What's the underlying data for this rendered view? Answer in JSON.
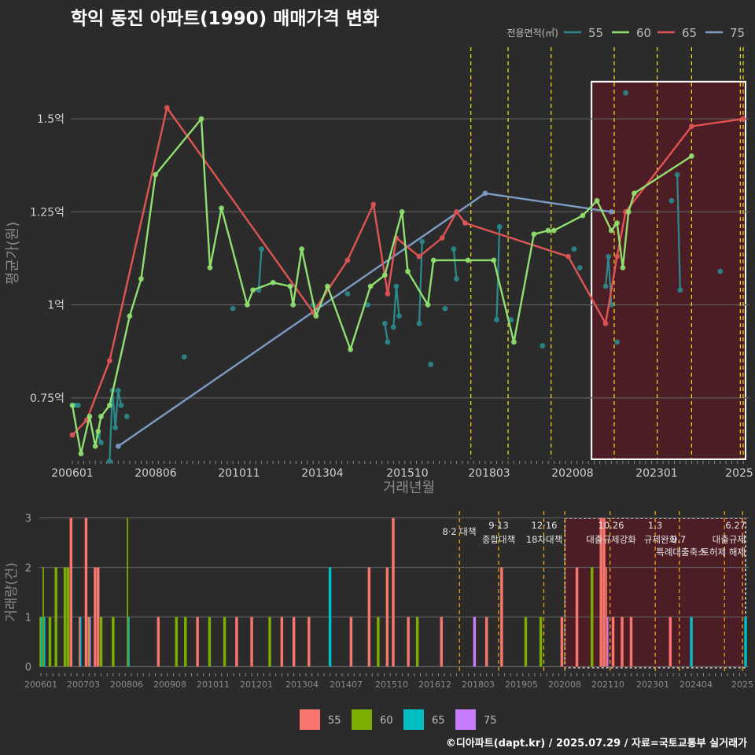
{
  "title": "학익 동진 아파트(1990) 매매가격 변화",
  "footer": "©디아파트(dapt.kr) / 2025.07.29 / 자료=국토교통부 실거래가",
  "colors": {
    "background": "#2b2b2b",
    "grid": "#5a5a5a",
    "policy_line": "#f5e214",
    "highlight_fill": "#5a1a24",
    "s55": "#2a8a8c",
    "s60": "#90e070",
    "s65": "#e05454",
    "s75": "#7d9cc4",
    "b55": "#f8766d",
    "b60": "#7cae00",
    "b65": "#00bfc4",
    "b75": "#c77cff"
  },
  "chart_data": [
    {
      "type": "line",
      "title": "학익 동진 아파트(1990) 매매가격 변화",
      "xlabel": "거래년월",
      "ylabel": "평균가(원)",
      "x_tick_labels": [
        "200601",
        "200806",
        "201011",
        "201304",
        "201510",
        "201803",
        "202008",
        "202301",
        "2025"
      ],
      "y_tick_labels": [
        "0.75억",
        "1억",
        "1.25억",
        "1.5억"
      ],
      "y_ticks": [
        0.75,
        1.0,
        1.25,
        1.5
      ],
      "ylim": [
        0.55,
        1.6
      ],
      "legend_title": "전용면적(㎡)",
      "legend_position": "top-right",
      "highlight_range": [
        "2021-01",
        "2025-07"
      ],
      "policy_dates": [
        "2017-08",
        "2018-09",
        "2019-12",
        "2021-10",
        "2023-01",
        "2024-01",
        "2025-06",
        "2025-07"
      ],
      "series": [
        {
          "name": "55",
          "color_key": "s55",
          "points": [
            [
              "2006-02",
              0.73
            ],
            [
              "2006-03",
              0.73
            ],
            [
              "2006-10",
              0.65
            ],
            [
              "2006-11",
              0.63
            ],
            [
              "2007-02",
              0.58
            ],
            [
              "2007-03",
              0.77
            ],
            [
              "2007-04",
              0.67
            ],
            [
              "2007-05",
              0.77
            ],
            [
              "2007-06",
              0.73
            ],
            [
              "2007-08",
              0.7
            ],
            [
              "2009-04",
              0.86
            ],
            [
              "2010-09",
              0.99
            ],
            [
              "2011-06",
              1.04
            ],
            [
              "2011-07",
              1.15
            ],
            [
              "2012-05",
              1.05
            ],
            [
              "2013-01",
              1.0
            ],
            [
              "2014-01",
              1.03
            ],
            [
              "2014-08",
              1.0
            ],
            [
              "2015-02",
              0.95
            ],
            [
              "2015-03",
              0.9
            ],
            [
              "2015-05",
              0.94
            ],
            [
              "2015-06",
              1.05
            ],
            [
              "2015-07",
              0.97
            ],
            [
              "2016-02",
              0.95
            ],
            [
              "2016-03",
              1.17
            ],
            [
              "2016-06",
              0.84
            ],
            [
              "2016-11",
              0.99
            ],
            [
              "2017-02",
              1.15
            ],
            [
              "2017-03",
              1.07
            ],
            [
              "2018-05",
              0.96
            ],
            [
              "2018-06",
              1.21
            ],
            [
              "2018-10",
              0.96
            ],
            [
              "2019-09",
              0.89
            ],
            [
              "2020-08",
              1.15
            ],
            [
              "2020-10",
              1.1
            ],
            [
              "2021-07",
              1.05
            ],
            [
              "2021-08",
              1.13
            ],
            [
              "2021-09",
              1.0
            ],
            [
              "2021-11",
              0.9
            ],
            [
              "2022-02",
              1.57
            ],
            [
              "2023-06",
              1.28
            ],
            [
              "2023-08",
              1.35
            ],
            [
              "2023-09",
              1.04
            ],
            [
              "2024-11",
              1.09
            ]
          ]
        },
        {
          "name": "60",
          "color_key": "s60",
          "points": [
            [
              "2006-01",
              0.73
            ],
            [
              "2006-04",
              0.6
            ],
            [
              "2006-07",
              0.7
            ],
            [
              "2006-09",
              0.62
            ],
            [
              "2006-10",
              0.66
            ],
            [
              "2006-11",
              0.7
            ],
            [
              "2007-02",
              0.73
            ],
            [
              "2007-09",
              0.97
            ],
            [
              "2008-01",
              1.07
            ],
            [
              "2008-06",
              1.35
            ],
            [
              "2009-10",
              1.5
            ],
            [
              "2010-01",
              1.1
            ],
            [
              "2010-05",
              1.26
            ],
            [
              "2011-02",
              1.0
            ],
            [
              "2011-04",
              1.04
            ],
            [
              "2011-11",
              1.06
            ],
            [
              "2012-05",
              1.05
            ],
            [
              "2012-06",
              1.0
            ],
            [
              "2012-09",
              1.15
            ],
            [
              "2013-02",
              0.97
            ],
            [
              "2013-06",
              1.05
            ],
            [
              "2014-02",
              0.88
            ],
            [
              "2014-09",
              1.05
            ],
            [
              "2015-02",
              1.08
            ],
            [
              "2015-08",
              1.25
            ],
            [
              "2015-10",
              1.09
            ],
            [
              "2016-05",
              1.0
            ],
            [
              "2016-07",
              1.12
            ],
            [
              "2017-07",
              1.12
            ],
            [
              "2018-04",
              1.12
            ],
            [
              "2018-11",
              0.9
            ],
            [
              "2019-06",
              1.19
            ],
            [
              "2019-11",
              1.2
            ],
            [
              "2020-01",
              1.2
            ],
            [
              "2020-11",
              1.24
            ],
            [
              "2021-04",
              1.28
            ],
            [
              "2021-09",
              1.2
            ],
            [
              "2021-11",
              1.22
            ],
            [
              "2022-01",
              1.1
            ],
            [
              "2022-03",
              1.25
            ],
            [
              "2022-05",
              1.3
            ],
            [
              "2024-01",
              1.4
            ]
          ]
        },
        {
          "name": "65",
          "color_key": "s65",
          "points": [
            [
              "2006-01",
              0.65
            ],
            [
              "2006-06",
              0.69
            ],
            [
              "2007-02",
              0.85
            ],
            [
              "2008-10",
              1.53
            ],
            [
              "2013-01",
              0.98
            ],
            [
              "2014-01",
              1.12
            ],
            [
              "2014-10",
              1.27
            ],
            [
              "2015-03",
              1.03
            ],
            [
              "2015-06",
              1.18
            ],
            [
              "2016-02",
              1.13
            ],
            [
              "2016-10",
              1.18
            ],
            [
              "2017-03",
              1.25
            ],
            [
              "2017-06",
              1.22
            ],
            [
              "2020-06",
              1.13
            ],
            [
              "2021-07",
              0.95
            ],
            [
              "2021-11",
              1.13
            ],
            [
              "2022-02",
              1.25
            ],
            [
              "2024-01",
              1.48
            ],
            [
              "2025-07",
              1.5
            ]
          ]
        },
        {
          "name": "75",
          "color_key": "s75",
          "points": [
            [
              "2007-05",
              0.62
            ],
            [
              "2018-01",
              1.3
            ],
            [
              "2021-09",
              1.25
            ]
          ]
        }
      ]
    },
    {
      "type": "bar",
      "xlabel": "",
      "ylabel": "거래량(건)",
      "y_tick_labels": [
        "0",
        "1",
        "2",
        "3"
      ],
      "ylim": [
        0,
        3
      ],
      "x_tick_labels": [
        "200601",
        "200703",
        "200806",
        "200908",
        "201011",
        "201201",
        "201304",
        "201407",
        "201510",
        "201612",
        "201803",
        "201905",
        "202008",
        "202110",
        "202301",
        "202404",
        "2025"
      ],
      "legend": [
        "55",
        "60",
        "65",
        "75"
      ],
      "legend_position": "bottom",
      "highlight_range": [
        "2020-07",
        "2025-07"
      ],
      "policy_annotations": [
        {
          "date": "2017-08",
          "label": "8·2 대책"
        },
        {
          "date": "2018-09",
          "label": "9·13 종합대책"
        },
        {
          "date": "2019-12",
          "label": "12·16 18차대책"
        },
        {
          "date": "2020-07",
          "label": ""
        },
        {
          "date": "2021-10",
          "label": "10.26 대출규제강화"
        },
        {
          "date": "2023-01",
          "label": "1.3 규제완화"
        },
        {
          "date": "2023-09",
          "label": "9.7 특례대출축소"
        },
        {
          "date": "2024-12",
          "label": "토허제 해제"
        },
        {
          "date": "2025-06",
          "label": "6.27 대출규제"
        }
      ],
      "policy_labels": [
        "8·2 대책",
        "9·13",
        "종합대책",
        "12·16",
        "18차대책",
        "10.26",
        "대출규제강화",
        "1.3",
        "규제완화",
        "9.7",
        "특례대출축소",
        "토허제 해제",
        "6.27",
        "대출규제"
      ],
      "bars": [
        {
          "month": "2006-01",
          "counts": [
            0,
            1,
            1,
            0
          ]
        },
        {
          "month": "2006-02",
          "counts": [
            0,
            2,
            1,
            0
          ]
        },
        {
          "month": "2006-04",
          "counts": [
            0,
            1,
            0,
            0
          ]
        },
        {
          "month": "2006-06",
          "counts": [
            0,
            2,
            0,
            0
          ]
        },
        {
          "month": "2006-09",
          "counts": [
            0,
            2,
            0,
            0
          ]
        },
        {
          "month": "2006-10",
          "counts": [
            0,
            2,
            0,
            0
          ]
        },
        {
          "month": "2006-11",
          "counts": [
            3,
            0,
            0,
            0
          ]
        },
        {
          "month": "2007-02",
          "counts": [
            1,
            0,
            1,
            0
          ]
        },
        {
          "month": "2007-04",
          "counts": [
            3,
            0,
            0,
            0
          ]
        },
        {
          "month": "2007-05",
          "counts": [
            1,
            1,
            0,
            1
          ]
        },
        {
          "month": "2007-07",
          "counts": [
            2,
            0,
            0,
            0
          ]
        },
        {
          "month": "2007-08",
          "counts": [
            2,
            0,
            0,
            0
          ]
        },
        {
          "month": "2007-09",
          "counts": [
            0,
            1,
            0,
            0
          ]
        },
        {
          "month": "2008-01",
          "counts": [
            0,
            1,
            0,
            0
          ]
        },
        {
          "month": "2008-06",
          "counts": [
            0,
            3,
            1,
            0
          ]
        },
        {
          "month": "2009-04",
          "counts": [
            1,
            0,
            0,
            0
          ]
        },
        {
          "month": "2009-10",
          "counts": [
            0,
            1,
            0,
            0
          ]
        },
        {
          "month": "2010-01",
          "counts": [
            0,
            1,
            0,
            0
          ]
        },
        {
          "month": "2010-05",
          "counts": [
            1,
            0,
            0,
            0
          ]
        },
        {
          "month": "2010-09",
          "counts": [
            0,
            1,
            0,
            0
          ]
        },
        {
          "month": "2011-02",
          "counts": [
            0,
            1,
            0,
            0
          ]
        },
        {
          "month": "2011-06",
          "counts": [
            1,
            0,
            0,
            0
          ]
        },
        {
          "month": "2011-11",
          "counts": [
            1,
            0,
            0,
            0
          ]
        },
        {
          "month": "2012-05",
          "counts": [
            0,
            1,
            0,
            0
          ]
        },
        {
          "month": "2012-09",
          "counts": [
            1,
            0,
            0,
            0
          ]
        },
        {
          "month": "2013-01",
          "counts": [
            1,
            0,
            0,
            0
          ]
        },
        {
          "month": "2013-06",
          "counts": [
            1,
            0,
            0,
            0
          ]
        },
        {
          "month": "2014-01",
          "counts": [
            0,
            0,
            2,
            0
          ]
        },
        {
          "month": "2014-08",
          "counts": [
            1,
            0,
            0,
            0
          ]
        },
        {
          "month": "2015-02",
          "counts": [
            2,
            0,
            0,
            0
          ]
        },
        {
          "month": "2015-05",
          "counts": [
            0,
            1,
            0,
            0
          ]
        },
        {
          "month": "2015-08",
          "counts": [
            2,
            0,
            0,
            0
          ]
        },
        {
          "month": "2015-10",
          "counts": [
            3,
            0,
            0,
            0
          ]
        },
        {
          "month": "2016-03",
          "counts": [
            1,
            0,
            0,
            0
          ]
        },
        {
          "month": "2016-06",
          "counts": [
            0,
            1,
            0,
            0
          ]
        },
        {
          "month": "2017-02",
          "counts": [
            1,
            0,
            0,
            0
          ]
        },
        {
          "month": "2018-01",
          "counts": [
            0,
            0,
            0,
            1
          ]
        },
        {
          "month": "2018-05",
          "counts": [
            1,
            0,
            0,
            0
          ]
        },
        {
          "month": "2018-10",
          "counts": [
            2,
            0,
            0,
            0
          ]
        },
        {
          "month": "2019-06",
          "counts": [
            0,
            1,
            0,
            0
          ]
        },
        {
          "month": "2019-11",
          "counts": [
            0,
            1,
            0,
            0
          ]
        },
        {
          "month": "2020-06",
          "counts": [
            1,
            0,
            0,
            0
          ]
        },
        {
          "month": "2020-11",
          "counts": [
            2,
            0,
            0,
            0
          ]
        },
        {
          "month": "2021-04",
          "counts": [
            0,
            2,
            0,
            0
          ]
        },
        {
          "month": "2021-07",
          "counts": [
            3,
            0,
            0,
            0
          ]
        },
        {
          "month": "2021-08",
          "counts": [
            3,
            0,
            0,
            0
          ]
        },
        {
          "month": "2021-09",
          "counts": [
            2,
            0,
            0,
            1
          ]
        },
        {
          "month": "2021-11",
          "counts": [
            1,
            0,
            0,
            0
          ]
        },
        {
          "month": "2022-02",
          "counts": [
            1,
            0,
            0,
            0
          ]
        },
        {
          "month": "2022-05",
          "counts": [
            1,
            0,
            0,
            0
          ]
        },
        {
          "month": "2023-06",
          "counts": [
            1,
            0,
            0,
            0
          ]
        },
        {
          "month": "2024-01",
          "counts": [
            0,
            0,
            1,
            0
          ]
        },
        {
          "month": "2025-07",
          "counts": [
            0,
            0,
            1,
            0
          ]
        }
      ]
    }
  ]
}
